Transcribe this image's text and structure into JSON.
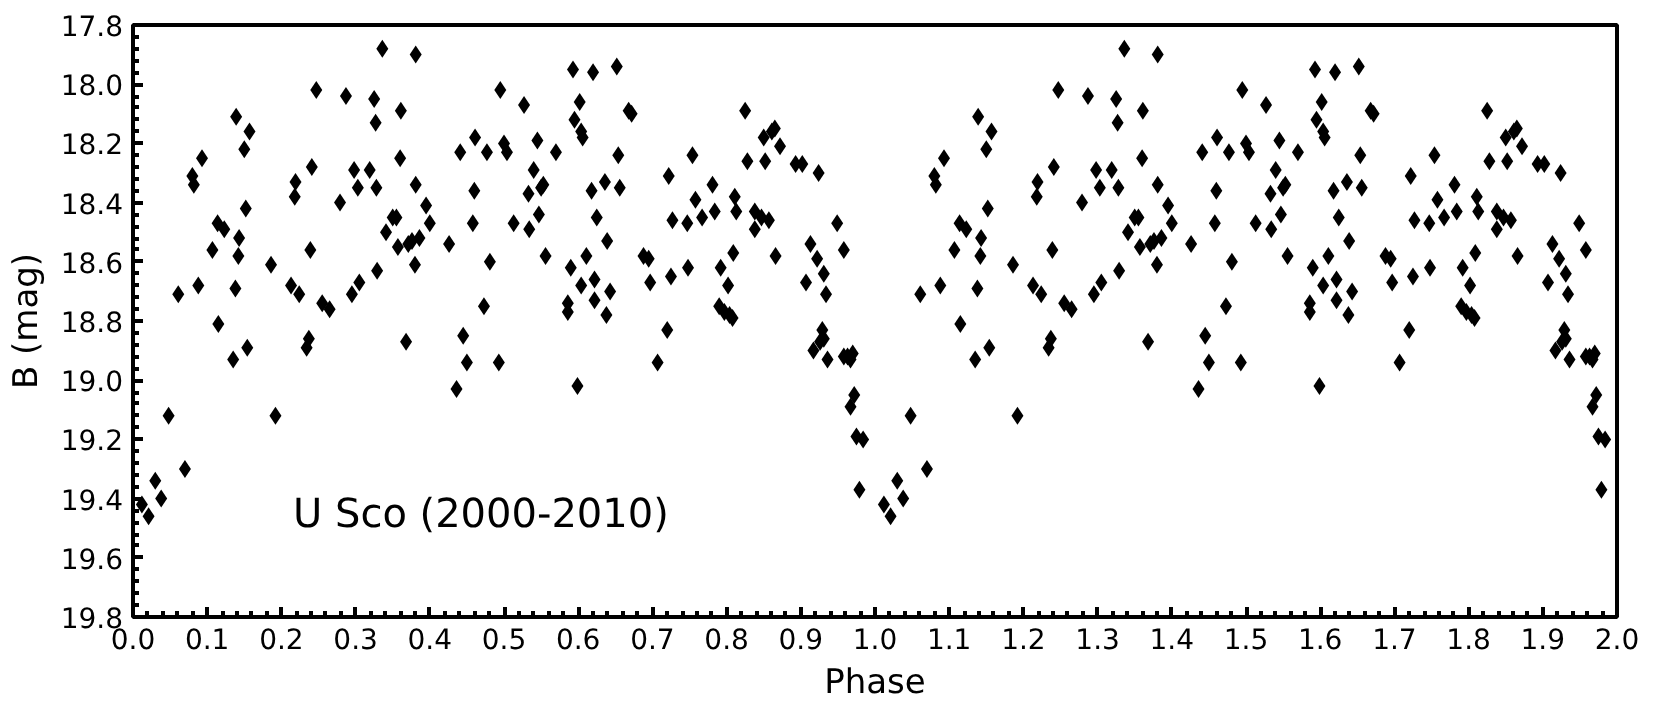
{
  "chart_data": {
    "type": "scatter",
    "xlabel": "Phase",
    "ylabel": "B (mag)",
    "annotations": [
      "U Sco (2000-2010)"
    ],
    "marker": "diamond",
    "grid": false,
    "xlim": [
      0,
      2
    ],
    "ylim": [
      19.8,
      17.8
    ],
    "xticks": [
      {
        "value": 0,
        "label": "0.0"
      },
      0.1,
      0.2,
      0.3,
      0.4,
      0.5,
      0.6,
      0.7,
      0.8,
      0.9,
      {
        "value": 1,
        "label": "1.0"
      },
      1.1,
      1.2,
      1.3,
      1.4,
      1.5,
      1.6,
      1.7,
      1.8,
      1.9,
      {
        "value": 2,
        "label": "2.0"
      }
    ],
    "yticks": [
      17.8,
      {
        "value": 18,
        "label": "18.0"
      },
      18.2,
      18.4,
      18.6,
      18.8,
      {
        "value": 19,
        "label": "19.0"
      },
      19.2,
      19.4,
      19.6,
      19.8
    ],
    "series": [
      {
        "color": "#000000",
        "x": [
          0.012,
          0.021,
          0.03,
          0.038,
          0.048,
          0.061,
          0.07,
          0.08,
          0.082,
          0.088,
          0.093,
          0.107,
          0.114,
          0.115,
          0.123,
          0.135,
          0.138,
          0.139,
          0.143,
          0.142,
          0.15,
          0.152,
          0.154,
          0.157,
          0.186,
          0.192,
          0.213,
          0.219,
          0.218,
          0.224,
          0.234,
          0.237,
          0.239,
          0.241,
          0.247,
          0.255,
          0.265,
          0.279,
          0.287,
          0.295,
          0.298,
          0.303,
          0.305,
          0.319,
          0.325,
          0.327,
          0.329,
          0.328,
          0.336,
          0.341,
          0.35,
          0.355,
          0.357,
          0.36,
          0.361,
          0.368,
          0.371,
          0.376,
          0.381,
          0.381,
          0.38,
          0.386,
          0.395,
          0.4,
          0.426,
          0.436,
          0.441,
          0.445,
          0.45,
          0.458,
          0.46,
          0.461,
          0.473,
          0.477,
          0.481,
          0.495,
          0.493,
          0.5,
          0.504,
          0.513,
          0.527,
          0.534,
          0.533,
          0.54,
          0.545,
          0.547,
          0.55,
          0.553,
          0.556,
          0.57,
          0.593,
          0.62,
          0.652,
          0.602,
          0.595,
          0.604,
          0.606,
          0.59,
          0.611,
          0.604,
          0.586,
          0.586,
          0.599,
          0.618,
          0.625,
          0.636,
          0.639,
          0.622,
          0.622,
          0.643,
          0.638,
          0.654,
          0.656,
          0.668,
          0.672,
          0.688,
          0.695,
          0.697,
          0.707,
          0.72,
          0.722,
          0.727,
          0.725,
          0.747,
          0.748,
          0.754,
          0.758,
          0.767,
          0.781,
          0.784,
          0.792,
          0.802,
          0.79,
          0.797,
          0.804,
          0.808,
          0.811,
          0.809,
          0.813,
          0.825,
          0.828,
          0.838,
          0.838,
          0.847,
          0.852,
          0.857,
          0.861,
          0.865,
          0.85,
          0.872,
          0.866,
          0.893,
          0.902,
          0.924,
          0.913,
          0.907,
          0.922,
          0.931,
          0.934,
          0.929,
          0.931,
          0.917,
          0.926,
          0.936,
          0.949,
          0.958,
          0.958,
          0.963,
          0.967,
          0.97,
          0.972,
          0.967,
          0.975,
          0.984,
          0.979,
          1.012,
          1.021,
          1.03,
          1.038,
          1.048,
          1.061,
          1.07,
          1.08,
          1.082,
          1.088,
          1.093,
          1.107,
          1.114,
          1.115,
          1.123,
          1.135,
          1.138,
          1.139,
          1.143,
          1.142,
          1.15,
          1.152,
          1.154,
          1.157,
          1.186,
          1.192,
          1.213,
          1.219,
          1.218,
          1.224,
          1.234,
          1.237,
          1.239,
          1.241,
          1.247,
          1.255,
          1.265,
          1.279,
          1.287,
          1.295,
          1.298,
          1.303,
          1.305,
          1.319,
          1.325,
          1.327,
          1.329,
          1.328,
          1.336,
          1.341,
          1.35,
          1.355,
          1.357,
          1.36,
          1.361,
          1.368,
          1.371,
          1.376,
          1.381,
          1.381,
          1.38,
          1.386,
          1.395,
          1.4,
          1.426,
          1.436,
          1.441,
          1.445,
          1.45,
          1.458,
          1.46,
          1.461,
          1.473,
          1.477,
          1.481,
          1.495,
          1.493,
          1.5,
          1.504,
          1.513,
          1.527,
          1.534,
          1.533,
          1.54,
          1.545,
          1.547,
          1.55,
          1.553,
          1.556,
          1.57,
          1.593,
          1.62,
          1.652,
          1.602,
          1.595,
          1.604,
          1.606,
          1.59,
          1.611,
          1.604,
          1.586,
          1.586,
          1.599,
          1.618,
          1.625,
          1.636,
          1.639,
          1.622,
          1.622,
          1.643,
          1.638,
          1.654,
          1.656,
          1.668,
          1.672,
          1.688,
          1.695,
          1.697,
          1.707,
          1.72,
          1.722,
          1.727,
          1.725,
          1.747,
          1.748,
          1.754,
          1.758,
          1.767,
          1.781,
          1.784,
          1.792,
          1.802,
          1.79,
          1.797,
          1.804,
          1.808,
          1.811,
          1.809,
          1.813,
          1.825,
          1.828,
          1.838,
          1.838,
          1.847,
          1.852,
          1.857,
          1.861,
          1.865,
          1.85,
          1.872,
          1.866,
          1.893,
          1.902,
          1.924,
          1.913,
          1.907,
          1.922,
          1.931,
          1.934,
          1.929,
          1.931,
          1.917,
          1.926,
          1.936,
          1.949,
          1.958,
          1.958,
          1.963,
          1.967,
          1.97,
          1.972,
          1.967,
          1.975,
          1.984,
          1.979
        ],
        "values": [
          19.42,
          19.46,
          19.34,
          19.4,
          19.12,
          18.71,
          19.3,
          18.31,
          18.34,
          18.68,
          18.25,
          18.56,
          18.47,
          18.81,
          18.49,
          18.93,
          18.69,
          18.11,
          18.52,
          18.58,
          18.22,
          18.42,
          18.89,
          18.16,
          18.61,
          19.12,
          18.68,
          18.33,
          18.38,
          18.71,
          18.89,
          18.86,
          18.56,
          18.28,
          18.02,
          18.74,
          18.76,
          18.4,
          18.04,
          18.71,
          18.29,
          18.35,
          18.67,
          18.29,
          18.05,
          18.13,
          18.63,
          18.35,
          17.88,
          18.5,
          18.45,
          18.45,
          18.55,
          18.25,
          18.09,
          18.87,
          18.54,
          18.53,
          17.9,
          18.34,
          18.61,
          18.52,
          18.41,
          18.47,
          18.54,
          19.03,
          18.23,
          18.85,
          18.94,
          18.47,
          18.36,
          18.18,
          18.75,
          18.23,
          18.6,
          18.02,
          18.94,
          18.2,
          18.23,
          18.47,
          18.07,
          18.49,
          18.37,
          18.29,
          18.19,
          18.44,
          18.35,
          18.34,
          18.58,
          18.23,
          17.95,
          17.96,
          17.94,
          18.06,
          18.12,
          18.16,
          18.18,
          18.62,
          18.58,
          18.68,
          18.74,
          18.77,
          19.02,
          18.36,
          18.45,
          18.33,
          18.53,
          18.66,
          18.73,
          18.7,
          18.78,
          18.24,
          18.35,
          18.09,
          18.1,
          18.58,
          18.59,
          18.67,
          18.94,
          18.83,
          18.31,
          18.46,
          18.65,
          18.47,
          18.62,
          18.24,
          18.39,
          18.45,
          18.34,
          18.43,
          18.62,
          18.68,
          18.75,
          18.77,
          18.78,
          18.79,
          18.38,
          18.57,
          18.43,
          18.09,
          18.26,
          18.43,
          18.49,
          18.45,
          18.26,
          18.46,
          18.16,
          18.15,
          18.18,
          18.21,
          18.58,
          18.27,
          18.27,
          18.3,
          18.54,
          18.67,
          18.59,
          18.64,
          18.71,
          18.83,
          18.86,
          18.9,
          18.87,
          18.93,
          18.47,
          18.56,
          18.92,
          18.92,
          18.93,
          18.91,
          19.05,
          19.09,
          19.19,
          19.2,
          19.37,
          19.42,
          19.46,
          19.34,
          19.4,
          19.12,
          18.71,
          19.3,
          18.31,
          18.34,
          18.68,
          18.25,
          18.56,
          18.47,
          18.81,
          18.49,
          18.93,
          18.69,
          18.11,
          18.52,
          18.58,
          18.22,
          18.42,
          18.89,
          18.16,
          18.61,
          19.12,
          18.68,
          18.33,
          18.38,
          18.71,
          18.89,
          18.86,
          18.56,
          18.28,
          18.02,
          18.74,
          18.76,
          18.4,
          18.04,
          18.71,
          18.29,
          18.35,
          18.67,
          18.29,
          18.05,
          18.13,
          18.63,
          18.35,
          17.88,
          18.5,
          18.45,
          18.45,
          18.55,
          18.25,
          18.09,
          18.87,
          18.54,
          18.53,
          17.9,
          18.34,
          18.61,
          18.52,
          18.41,
          18.47,
          18.54,
          19.03,
          18.23,
          18.85,
          18.94,
          18.47,
          18.36,
          18.18,
          18.75,
          18.23,
          18.6,
          18.02,
          18.94,
          18.2,
          18.23,
          18.47,
          18.07,
          18.49,
          18.37,
          18.29,
          18.19,
          18.44,
          18.35,
          18.34,
          18.58,
          18.23,
          17.95,
          17.96,
          17.94,
          18.06,
          18.12,
          18.16,
          18.18,
          18.62,
          18.58,
          18.68,
          18.74,
          18.77,
          19.02,
          18.36,
          18.45,
          18.33,
          18.53,
          18.66,
          18.73,
          18.7,
          18.78,
          18.24,
          18.35,
          18.09,
          18.1,
          18.58,
          18.59,
          18.67,
          18.94,
          18.83,
          18.31,
          18.46,
          18.65,
          18.47,
          18.62,
          18.24,
          18.39,
          18.45,
          18.34,
          18.43,
          18.62,
          18.68,
          18.75,
          18.77,
          18.78,
          18.79,
          18.38,
          18.57,
          18.43,
          18.09,
          18.26,
          18.43,
          18.49,
          18.45,
          18.26,
          18.46,
          18.16,
          18.15,
          18.18,
          18.21,
          18.58,
          18.27,
          18.27,
          18.3,
          18.54,
          18.67,
          18.59,
          18.64,
          18.71,
          18.83,
          18.86,
          18.9,
          18.87,
          18.93,
          18.47,
          18.56,
          18.92,
          18.92,
          18.93,
          18.91,
          19.05,
          19.09,
          19.19,
          19.2,
          19.37
        ]
      }
    ]
  }
}
